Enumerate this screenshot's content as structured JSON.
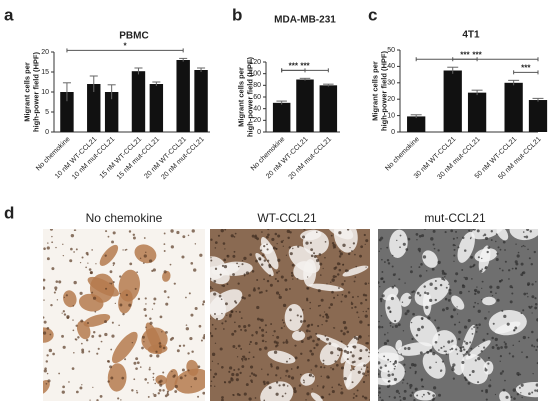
{
  "chart_data": [
    {
      "type": "bar",
      "panel": "a",
      "title": "PBMC",
      "ylabel": [
        "Migrant cells per",
        "high-power field (HPF)"
      ],
      "categories": [
        "No chemokine",
        "10 nM WT-CCL21",
        "10 nM mut-CCL21",
        "15 nM WT-CCL21",
        "15 nM mut-CCL21",
        "20 nM WT-CCL21",
        "20 nM mut-CCL21"
      ],
      "values": [
        10,
        12,
        10,
        15.2,
        12,
        18,
        15.5
      ],
      "errors": [
        2.3,
        2,
        1.8,
        0.8,
        0.5,
        0.4,
        0.5
      ],
      "color": "#111111",
      "ylim": [
        0,
        20
      ],
      "yticks": [
        0,
        5,
        10,
        15,
        20
      ],
      "annotations": [
        {
          "text": "*",
          "between": [
            "No chemokine",
            "20 nM WT-CCL21"
          ]
        }
      ]
    },
    {
      "type": "bar",
      "panel": "b",
      "title": "MDA-MB-231",
      "ylabel": [
        "Migrant cells per",
        "high-power field (HPF)"
      ],
      "categories": [
        "No chemokine",
        "20 nM WT-CCL21",
        "20 nM mut-CCL21"
      ],
      "values": [
        50,
        90,
        80
      ],
      "errors": [
        3,
        2,
        2
      ],
      "color": "#111111",
      "ylim": [
        0,
        120
      ],
      "yticks": [
        0,
        20,
        40,
        60,
        80,
        100,
        120
      ],
      "annotations": [
        {
          "text": "***",
          "between": [
            "No chemokine",
            "20 nM WT-CCL21"
          ]
        },
        {
          "text": "***",
          "between": [
            "No chemokine",
            "20 nM mut-CCL21"
          ]
        }
      ]
    },
    {
      "type": "bar",
      "panel": "c",
      "title": "4T1",
      "ylabel": [
        "Migrant cells per",
        "high-power field (HPF)"
      ],
      "categories": [
        "No chemokine",
        "30 nM WT-CCL21",
        "30 nM mut-CCL21",
        "50 nM WT-CCL21",
        "50 nM mut-CCL21"
      ],
      "values": [
        9.5,
        37.5,
        24,
        30,
        19.5
      ],
      "errors": [
        1,
        2,
        1.5,
        1.5,
        1
      ],
      "color": "#111111",
      "ylim": [
        0,
        50
      ],
      "yticks": [
        0,
        10,
        20,
        30,
        40,
        50
      ],
      "annotations": [
        {
          "text": "***",
          "between": [
            "50 nM WT-CCL21",
            "50 nM mut-CCL21"
          ]
        },
        {
          "text": "***",
          "between": [
            "30 nM WT-CCL21",
            "30 nM mut-CCL21"
          ]
        },
        {
          "text": "***",
          "between": [
            "No chemokine",
            "50 nM mut-CCL21"
          ]
        }
      ]
    }
  ],
  "panel_d": {
    "label": "d",
    "captions": [
      "No chemokine",
      "WT-CCL21",
      "mut-CCL21"
    ]
  }
}
